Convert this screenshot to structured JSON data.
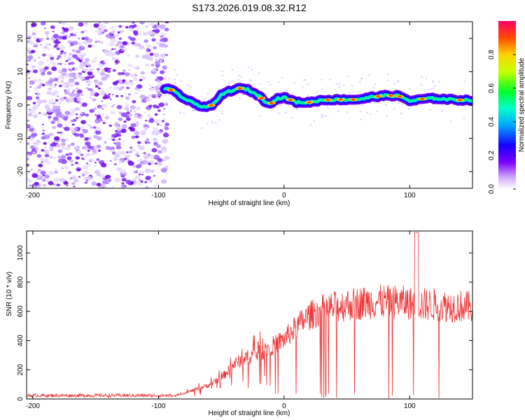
{
  "title": "S173.2026.019.08.32.R12",
  "chart_data": [
    {
      "type": "heatmap",
      "xlabel": "Height of straight line (km)",
      "ylabel": "Frequency (Hz)",
      "xlim": [
        -205,
        150
      ],
      "ylim": [
        -25,
        25
      ],
      "xticks": [
        -200,
        -100,
        0,
        100
      ],
      "yticks": [
        -20,
        -10,
        0,
        10,
        20
      ],
      "noise_region_x": [
        -205,
        -93
      ],
      "ridge": {
        "x": [
          -95,
          -90,
          -85,
          -80,
          -75,
          -70,
          -65,
          -60,
          -55,
          -50,
          -45,
          -40,
          -35,
          -30,
          -25,
          -20,
          -15,
          -10,
          -5,
          0,
          10,
          20,
          30,
          40,
          50,
          60,
          70,
          80,
          90,
          95,
          100,
          105,
          110,
          120,
          130,
          140,
          150
        ],
        "freq": [
          5,
          4.5,
          3.5,
          2,
          1,
          0.3,
          -0.5,
          -0.5,
          0.5,
          3,
          4,
          4.5,
          5,
          4.8,
          3.8,
          2.8,
          1,
          0.6,
          2,
          2.3,
          0.8,
          0.8,
          1.5,
          1.6,
          1.6,
          1.7,
          2.4,
          2.8,
          2.8,
          2.2,
          1.2,
          1.4,
          1.8,
          2,
          1.7,
          1.5,
          1.5
        ]
      }
    },
    {
      "type": "line",
      "xlabel": "Height of straight line (km)",
      "ylabel": "SNR (10 * v/v)",
      "xlim": [
        -205,
        150
      ],
      "ylim": [
        0,
        1150
      ],
      "xticks": [
        -200,
        -100,
        0,
        100
      ],
      "yticks": [
        0,
        200,
        400,
        600,
        800,
        1000
      ],
      "color": "#ee3333",
      "envelope": {
        "x": [
          -205,
          -90,
          -80,
          -70,
          -60,
          -50,
          -40,
          -30,
          -20,
          -10,
          0,
          10,
          20,
          30,
          40,
          50,
          60,
          70,
          80,
          90,
          100,
          110,
          120,
          130,
          140,
          150
        ],
        "y": [
          20,
          20,
          40,
          70,
          100,
          150,
          250,
          300,
          330,
          380,
          430,
          520,
          600,
          640,
          660,
          680,
          690,
          700,
          700,
          700,
          690,
          680,
          680,
          670,
          670,
          660
        ]
      }
    }
  ],
  "colorbar": {
    "label": "Normalized spectral amplitude",
    "ticks": [
      "0.0",
      "0.2",
      "0.4",
      "0.6",
      "0.8"
    ]
  }
}
